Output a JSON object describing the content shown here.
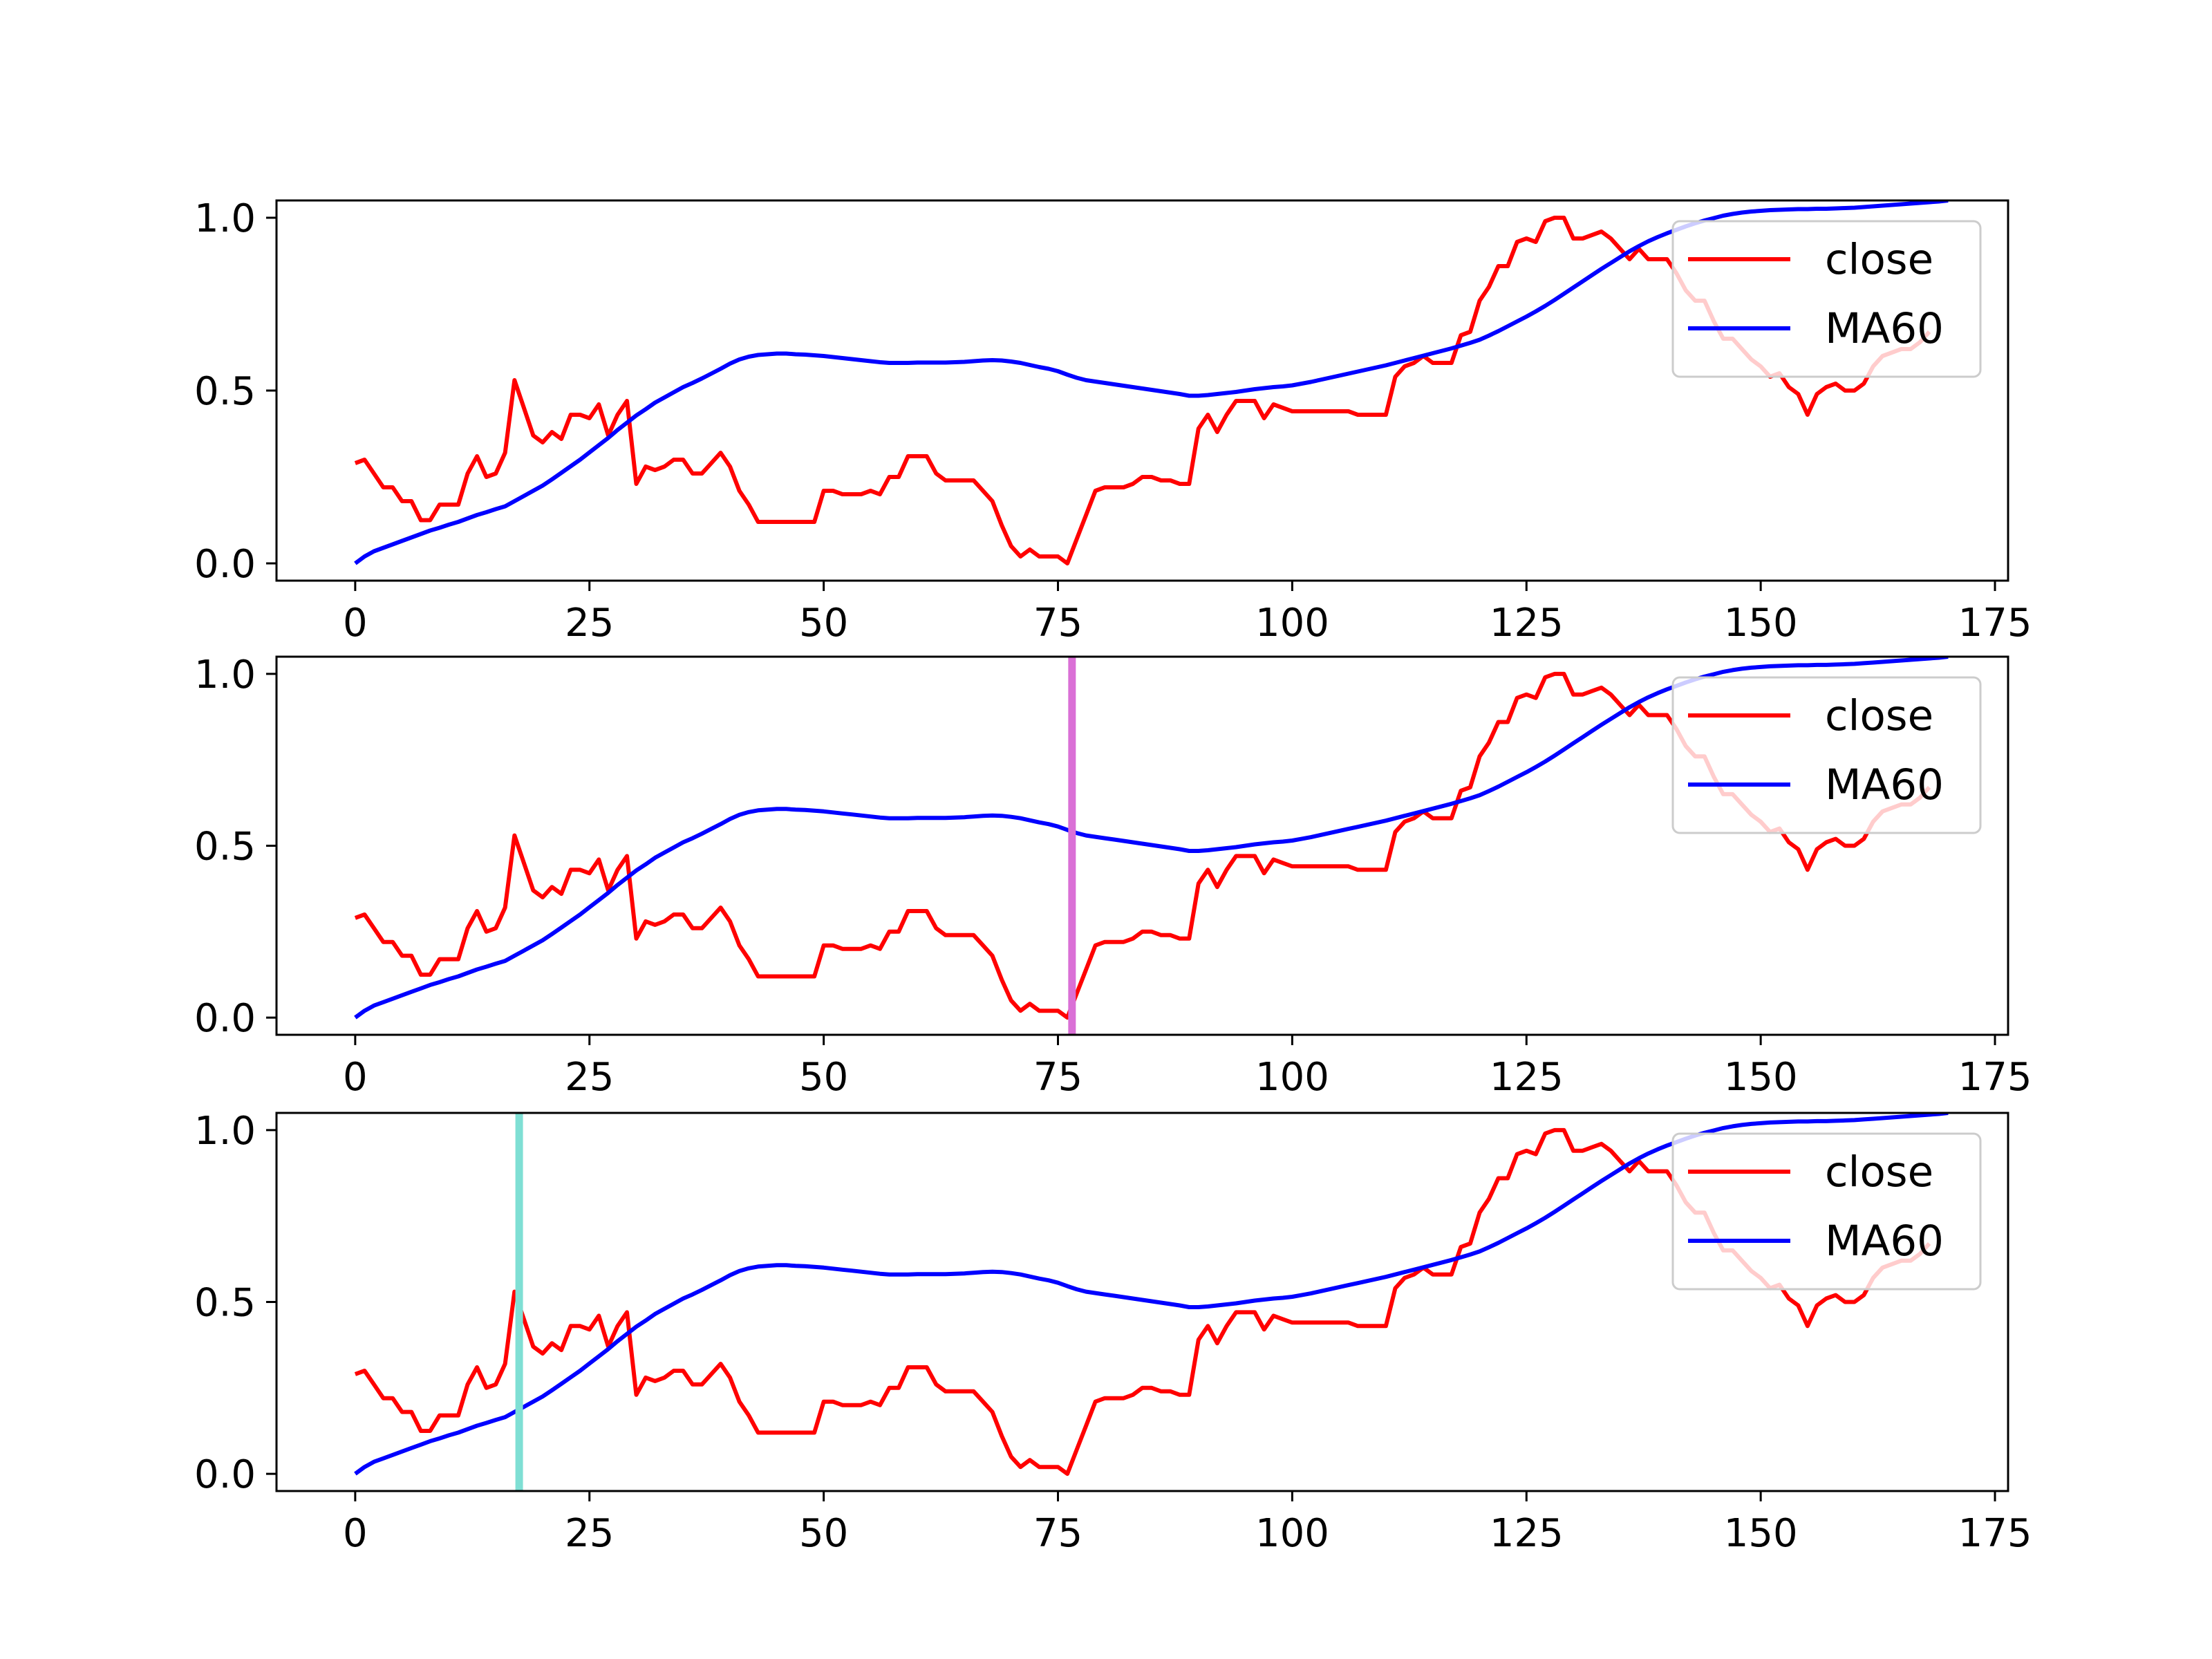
{
  "chart_data": [
    {
      "type": "line",
      "xlim": [
        -8.4,
        176.4
      ],
      "ylim": [
        -0.05,
        1.05
      ],
      "xticks": [
        0,
        25,
        50,
        75,
        100,
        125,
        150,
        175
      ],
      "yticks": [
        "0.0",
        "0.5",
        "1.0"
      ],
      "legend": {
        "placement": "top-right",
        "entries": [
          "close",
          "MA60"
        ]
      },
      "grid": false,
      "series": [
        {
          "name": "close",
          "color": "#ff0000",
          "x": "0-168",
          "values": [
            0.29,
            0.3,
            0.26,
            0.22,
            0.22,
            0.18,
            0.18,
            0.125,
            0.125,
            0.17,
            0.17,
            0.17,
            0.26,
            0.31,
            0.25,
            0.26,
            0.32,
            0.53,
            0.45,
            0.37,
            0.35,
            0.38,
            0.36,
            0.43,
            0.43,
            0.42,
            0.46,
            0.37,
            0.43,
            0.47,
            0.23,
            0.28,
            0.27,
            0.28,
            0.3,
            0.3,
            0.26,
            0.26,
            0.29,
            0.32,
            0.28,
            0.21,
            0.17,
            0.12,
            0.12,
            0.12,
            0.12,
            0.12,
            0.12,
            0.12,
            0.21,
            0.21,
            0.2,
            0.2,
            0.2,
            0.21,
            0.2,
            0.25,
            0.25,
            0.31,
            0.31,
            0.31,
            0.26,
            0.24,
            0.24,
            0.24,
            0.24,
            0.21,
            0.18,
            0.11,
            0.05,
            0.02,
            0.04,
            0.02,
            0.02,
            0.02,
            0.0,
            0.07,
            0.14,
            0.21,
            0.22,
            0.22,
            0.22,
            0.23,
            0.25,
            0.25,
            0.24,
            0.24,
            0.23,
            0.23,
            0.39,
            0.43,
            0.38,
            0.43,
            0.47,
            0.47,
            0.47,
            0.42,
            0.46,
            0.45,
            0.44,
            0.44,
            0.44,
            0.44,
            0.44,
            0.44,
            0.44,
            0.43,
            0.43,
            0.43,
            0.43,
            0.54,
            0.57,
            0.58,
            0.6,
            0.58,
            0.58,
            0.58,
            0.66,
            0.67,
            0.76,
            0.8,
            0.86,
            0.86,
            0.93,
            0.94,
            0.93,
            0.99,
            1.0,
            1.0,
            0.94,
            0.94,
            0.95,
            0.96,
            0.94,
            0.91,
            0.88,
            0.91,
            0.88,
            0.88,
            0.88,
            0.84,
            0.79,
            0.76,
            0.76,
            0.7,
            0.65,
            0.65,
            0.62,
            0.59,
            0.57,
            0.54,
            0.55,
            0.51,
            0.49,
            0.43,
            0.49,
            0.51,
            0.52,
            0.5,
            0.5,
            0.52,
            0.57,
            0.6,
            0.61,
            0.62,
            0.62,
            0.64,
            0.67
          ]
        },
        {
          "name": "MA60",
          "color": "#0000ff",
          "x": "0-168",
          "values": [
            0.0,
            0.02,
            0.035,
            0.045,
            0.055,
            0.065,
            0.075,
            0.085,
            0.095,
            0.103,
            0.112,
            0.12,
            0.13,
            0.14,
            0.148,
            0.157,
            0.165,
            0.18,
            0.195,
            0.21,
            0.225,
            0.243,
            0.262,
            0.281,
            0.3,
            0.321,
            0.342,
            0.363,
            0.386,
            0.407,
            0.428,
            0.446,
            0.465,
            0.48,
            0.495,
            0.51,
            0.522,
            0.535,
            0.549,
            0.563,
            0.578,
            0.59,
            0.598,
            0.603,
            0.605,
            0.607,
            0.607,
            0.605,
            0.604,
            0.602,
            0.6,
            0.597,
            0.594,
            0.591,
            0.588,
            0.585,
            0.582,
            0.58,
            0.58,
            0.58,
            0.581,
            0.581,
            0.581,
            0.581,
            0.582,
            0.583,
            0.585,
            0.587,
            0.588,
            0.587,
            0.584,
            0.58,
            0.574,
            0.568,
            0.563,
            0.556,
            0.546,
            0.537,
            0.53,
            0.526,
            0.522,
            0.518,
            0.514,
            0.51,
            0.506,
            0.502,
            0.498,
            0.494,
            0.49,
            0.485,
            0.485,
            0.487,
            0.49,
            0.493,
            0.496,
            0.5,
            0.504,
            0.507,
            0.51,
            0.512,
            0.515,
            0.52,
            0.525,
            0.531,
            0.537,
            0.543,
            0.549,
            0.555,
            0.561,
            0.567,
            0.573,
            0.58,
            0.587,
            0.594,
            0.601,
            0.608,
            0.615,
            0.622,
            0.63,
            0.638,
            0.647,
            0.659,
            0.672,
            0.686,
            0.7,
            0.714,
            0.729,
            0.745,
            0.762,
            0.78,
            0.798,
            0.816,
            0.834,
            0.852,
            0.869,
            0.886,
            0.903,
            0.918,
            0.932,
            0.944,
            0.955,
            0.965,
            0.975,
            0.984,
            0.992,
            0.999,
            1.006,
            1.011,
            1.015,
            1.018,
            1.02,
            1.022,
            1.023,
            1.024,
            1.025,
            1.025,
            1.026,
            1.026,
            1.027,
            1.028,
            1.029,
            1.031,
            1.033,
            1.035,
            1.037,
            1.039,
            1.041,
            1.043,
            1.045,
            1.047,
            1.05
          ]
        }
      ],
      "vertical_marker": null
    },
    {
      "type": "line",
      "xlim": [
        -8.4,
        176.4
      ],
      "ylim": [
        -0.05,
        1.05
      ],
      "xticks": [
        0,
        25,
        50,
        75,
        100,
        125,
        150,
        175
      ],
      "yticks": [
        "0.0",
        "0.5",
        "1.0"
      ],
      "legend": {
        "placement": "top-right",
        "entries": [
          "close",
          "MA60"
        ]
      },
      "grid": false,
      "series_same_as_first": true,
      "vertical_marker": {
        "x": 76.5,
        "color": "#da70d6"
      }
    },
    {
      "type": "line",
      "xlim": [
        -8.4,
        176.4
      ],
      "ylim": [
        -0.05,
        1.05
      ],
      "xticks": [
        0,
        25,
        50,
        75,
        100,
        125,
        150,
        175
      ],
      "yticks": [
        "0.0",
        "0.5",
        "1.0"
      ],
      "legend": {
        "placement": "top-right",
        "entries": [
          "close",
          "MA60"
        ]
      },
      "grid": false,
      "series_same_as_first": true,
      "vertical_marker": {
        "x": 17.5,
        "color": "#7fdfd4"
      }
    }
  ]
}
